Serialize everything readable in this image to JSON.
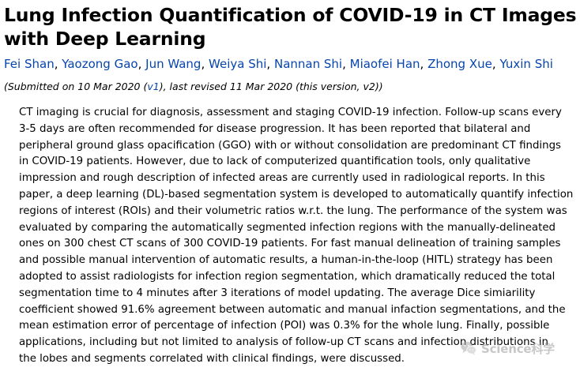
{
  "paper": {
    "title_line_1": "Lung Infection Quantification of COVID-19 in CT Images",
    "title_line_2": "with Deep Learning",
    "authors": [
      "Fei Shan",
      "Yaozong Gao",
      "Jun Wang",
      "Weiya Shi",
      "Nannan Shi",
      "Miaofei Han",
      "Zhong Xue",
      "Yuxin Shi"
    ],
    "author_separator": ",",
    "dateline": {
      "prefix": "(Submitted on 10 Mar 2020 (",
      "version_link": "v1",
      "suffix": "), last revised 11 Mar 2020 (this version, v2))"
    },
    "abstract_lines": [
      "CT imaging is crucial for diagnosis, assessment and staging COVID-19 infection. Follow-up scans every",
      "3-5 days are often recommended for disease progression. It has been reported that bilateral and",
      "peripheral ground glass opacification (GGO) with or without consolidation are predominant CT findings",
      "in COVID-19 patients. However, due to lack of computerized quantification tools, only qualitative",
      "impression and rough description of infected areas are currently used in radiological reports. In this",
      "paper, a deep learning (DL)-based segmentation system is developed to automatically quantify infection",
      "regions of interest (ROIs) and their volumetric ratios w.r.t. the lung. The performance of the system was",
      "evaluated by comparing the automatically segmented infection regions with the manually-delineated",
      "ones on 300 chest CT scans of 300 COVID-19 patients. For fast manual delineation of training samples",
      "and possible manual intervention of automatic results, a human-in-the-loop (HITL) strategy has been",
      "adopted to assist radiologists for infection region segmentation, which dramatically reduced the total",
      "segmentation time to 4 minutes after 3 iterations of model updating. The average Dice simiarility",
      "coefficient showed 91.6% agreement between automatic and manual infaction segmentations, and the",
      "mean estimation error of percentage of infection (POI) was 0.3% for the whole lung. Finally, possible",
      "applications, including but not limited to analysis of follow-up CT scans and infection distributions in",
      "the lobes and segments correlated with clinical findings, were discussed."
    ]
  },
  "watermark": {
    "icon": "wechat-bubble-icon",
    "text": "Science科学"
  },
  "colors": {
    "link": "#0645ad",
    "text": "#000000",
    "watermark": "#9a9a9a"
  }
}
